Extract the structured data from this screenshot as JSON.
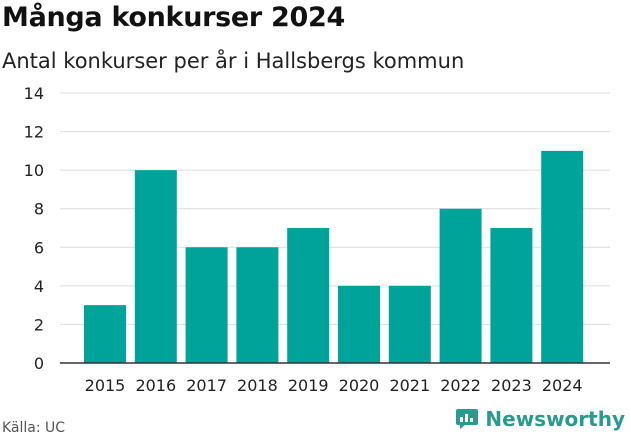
{
  "header": {
    "title": "Många konkurser 2024",
    "subtitle": "Antal konkurser per år i Hallsbergs kommun"
  },
  "footer": {
    "source": "Källa: UC",
    "brand": "Newsworthy"
  },
  "colors": {
    "bar": "#00a39a",
    "grid": "#dcdcdc",
    "axis": "#333333",
    "brand": "#2a9a8e"
  },
  "chart_data": {
    "type": "bar",
    "title": "Många konkurser 2024",
    "subtitle": "Antal konkurser per år i Hallsbergs kommun",
    "categories": [
      "2015",
      "2016",
      "2017",
      "2018",
      "2019",
      "2020",
      "2021",
      "2022",
      "2023",
      "2024"
    ],
    "values": [
      3,
      10,
      6,
      6,
      7,
      4,
      4,
      8,
      7,
      11
    ],
    "yticks": [
      0,
      2,
      4,
      6,
      8,
      10,
      12,
      14
    ],
    "ylim": [
      0,
      14
    ],
    "grid": true,
    "legend": "none"
  }
}
